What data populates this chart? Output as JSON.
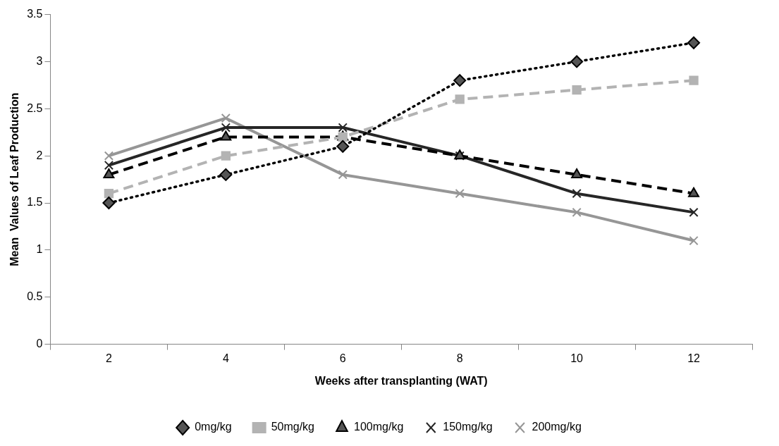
{
  "chart_data": {
    "type": "line",
    "xlabel": "Weeks after transplanting (WAT)",
    "ylabel": "Mean  Values of Leaf Production",
    "categories": [
      "2",
      "4",
      "6",
      "8",
      "10",
      "12"
    ],
    "ylim": [
      0,
      3.5
    ],
    "yticks": [
      0,
      0.5,
      1,
      1.5,
      2,
      2.5,
      3,
      3.5
    ],
    "legend": "bottom",
    "series": [
      {
        "name": "0mg/kg",
        "color": "#000000",
        "marker": "diamond",
        "line_style": "dotted",
        "values": [
          1.5,
          1.8,
          2.1,
          2.8,
          3.0,
          3.2
        ]
      },
      {
        "name": "50mg/kg",
        "color": "#b3b3b3",
        "marker": "square",
        "line_style": "dashed",
        "values": [
          1.6,
          2.0,
          2.2,
          2.6,
          2.7,
          2.8
        ]
      },
      {
        "name": "100mg/kg",
        "color": "#000000",
        "marker": "triangle",
        "line_style": "dashed",
        "values": [
          1.8,
          2.2,
          2.2,
          2.0,
          1.8,
          1.6
        ]
      },
      {
        "name": "150mg/kg",
        "color": "#262626",
        "marker": "cross",
        "line_style": "solid",
        "values": [
          1.9,
          2.3,
          2.3,
          2.0,
          1.6,
          1.4
        ]
      },
      {
        "name": "200mg/kg",
        "color": "#969696",
        "marker": "cross",
        "line_style": "solid",
        "values": [
          2.0,
          2.4,
          1.8,
          1.6,
          1.4,
          1.1
        ]
      }
    ]
  }
}
